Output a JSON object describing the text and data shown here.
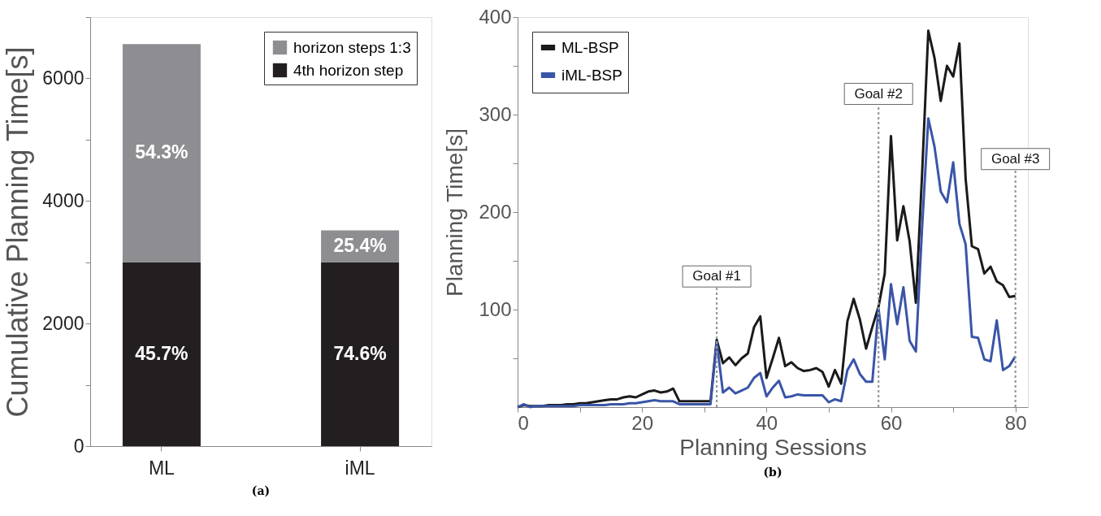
{
  "chart_data": [
    {
      "type": "bar",
      "stacked": true,
      "categories": [
        "ML",
        "iML"
      ],
      "ylabel": "Cumulative Planning Time[s]",
      "series": [
        {
          "name": "4th horizon step",
          "color": "#231f20",
          "values": [
            3000,
            3000
          ]
        },
        {
          "name": "horizon steps 1:3",
          "color": "#8e8d91",
          "values": [
            3560,
            520
          ]
        }
      ],
      "ylim": [
        0,
        7000
      ],
      "yticks": [
        0,
        {
          "value": 1000,
          "label": null
        },
        2000,
        {
          "value": 3000,
          "label": null
        },
        4000,
        {
          "value": 5000,
          "label": null
        },
        6000,
        {
          "value": 7000,
          "label": null
        }
      ],
      "legend": "top right",
      "grid": false,
      "annotations": [
        "(a)",
        "45.7%",
        "74.6%",
        "54.3%",
        "25.4%"
      ]
    },
    {
      "type": "line",
      "xlabel": "Planning Sessions",
      "ylabel": "Planning Time[s]",
      "x": [
        0,
        1,
        2,
        3,
        4,
        5,
        6,
        7,
        8,
        9,
        10,
        11,
        12,
        13,
        14,
        15,
        16,
        17,
        18,
        19,
        20,
        21,
        22,
        23,
        24,
        25,
        26,
        27,
        28,
        29,
        30,
        31,
        32,
        33,
        34,
        35,
        36,
        37,
        38,
        39,
        40,
        41,
        42,
        43,
        44,
        45,
        46,
        47,
        48,
        49,
        50,
        51,
        52,
        53,
        54,
        55,
        56,
        57,
        58,
        59,
        60,
        61,
        62,
        63,
        64,
        65,
        66,
        67,
        68,
        69,
        70,
        71,
        72,
        73,
        74,
        75,
        76,
        77,
        78,
        79,
        80
      ],
      "series": [
        {
          "name": "ML-BSP",
          "color": "#1a1a1a",
          "values": [
            0,
            2,
            1,
            1,
            1,
            2,
            2,
            2,
            3,
            3,
            4,
            4,
            5,
            6,
            7,
            8,
            8,
            10,
            11,
            10,
            13,
            16,
            17,
            15,
            16,
            19,
            6,
            6,
            6,
            6,
            6,
            6,
            69,
            45,
            51,
            43,
            50,
            55,
            82,
            93,
            30,
            50,
            71,
            42,
            46,
            40,
            37,
            38,
            40,
            36,
            21,
            38,
            24,
            88,
            111,
            90,
            60,
            82,
            103,
            137,
            278,
            171,
            206,
            170,
            107,
            239,
            386,
            358,
            314,
            350,
            339,
            373,
            234,
            165,
            162,
            137,
            144,
            129,
            125,
            113,
            114
          ]
        },
        {
          "name": "iML-BSP",
          "color": "#3a55a8",
          "values": [
            0,
            3,
            0,
            1,
            1,
            1,
            1,
            1,
            1,
            1,
            2,
            2,
            2,
            2,
            2,
            3,
            3,
            3,
            4,
            4,
            5,
            6,
            7,
            6,
            6,
            6,
            3,
            3,
            3,
            3,
            3,
            3,
            67,
            15,
            20,
            14,
            17,
            20,
            30,
            35,
            11,
            20,
            27,
            10,
            11,
            13,
            12,
            12,
            12,
            12,
            5,
            8,
            6,
            38,
            49,
            34,
            26,
            26,
            101,
            49,
            126,
            85,
            123,
            68,
            57,
            184,
            296,
            267,
            221,
            210,
            251,
            188,
            167,
            72,
            71,
            49,
            47,
            89,
            38,
            42,
            52
          ]
        }
      ],
      "xlim": [
        0,
        82
      ],
      "xticks": [
        0,
        {
          "value": 10,
          "label": null
        },
        20,
        {
          "value": 30,
          "label": null
        },
        40,
        {
          "value": 50,
          "label": null
        },
        60,
        {
          "value": 70,
          "label": null
        },
        80
      ],
      "ylim": [
        0,
        400
      ],
      "yticks": [
        {
          "value": 50,
          "label": null
        },
        100,
        {
          "value": 150,
          "label": null
        },
        200,
        {
          "value": 250,
          "label": null
        },
        300,
        {
          "value": 350,
          "label": null
        },
        400
      ],
      "ref_lines": [
        {
          "axis": "x",
          "value": 32,
          "label": "Goal #1",
          "color": "#999999",
          "line_style": "dotted"
        },
        {
          "axis": "x",
          "value": 58,
          "label": "Goal #2",
          "color": "#999999",
          "line_style": "dotted"
        },
        {
          "axis": "x",
          "value": 80,
          "label": "Goal #3",
          "color": "#999999",
          "line_style": "dotted"
        }
      ],
      "legend": "top left",
      "grid": false,
      "marker": "none",
      "line_style": "solid",
      "annotations": [
        "(b)"
      ]
    }
  ]
}
